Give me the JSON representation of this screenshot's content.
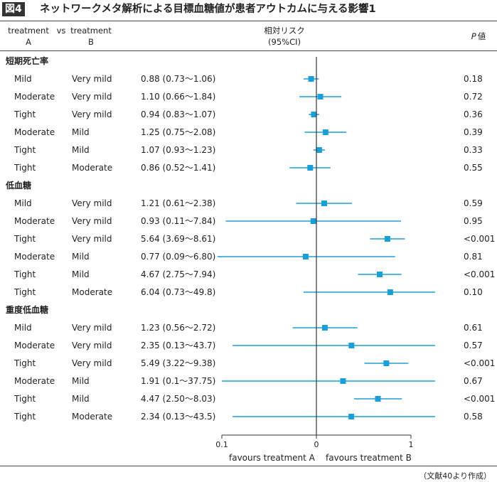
{
  "figure": {
    "label": "図4",
    "title": "ネットワークメタ解析による目標血糖値が患者アウトカムに与える影響1",
    "source_note": "（文献40より作成）"
  },
  "header": {
    "treatment_a_line1": "treatment",
    "treatment_a_line2": "A",
    "vs": "vs",
    "treatment_b_line1": "treatment",
    "treatment_b_line2": "B",
    "rr_line1": "相対リスク",
    "rr_line2": "(95%CI)",
    "p_label": "P",
    "p_suffix": "値"
  },
  "axis": {
    "ticks": [
      "0.1",
      "0",
      "1"
    ],
    "favours_a": "favours treatment A",
    "favours_b": "favours treatment B"
  },
  "colors": {
    "ci_line": "#1a9fd8",
    "marker": "#1a9fd8",
    "axis": "#333333",
    "rule": "#444444"
  },
  "chart_data": {
    "type": "forest",
    "x_scale": "log",
    "xlim": [
      0.1,
      10
    ],
    "sections": [
      {
        "name": "短期死亡率",
        "rows": [
          {
            "a": "Mild",
            "b": "Very mild",
            "rr": 0.88,
            "lo": 0.73,
            "hi": 1.06,
            "rr_text": "0.88 (0.73～1.06)",
            "p": "0.18"
          },
          {
            "a": "Moderate",
            "b": "Very mild",
            "rr": 1.1,
            "lo": 0.66,
            "hi": 1.84,
            "rr_text": "1.10 (0.66～1.84)",
            "p": "0.72"
          },
          {
            "a": "Tight",
            "b": "Very mild",
            "rr": 0.94,
            "lo": 0.83,
            "hi": 1.07,
            "rr_text": "0.94 (0.83～1.07)",
            "p": "0.36"
          },
          {
            "a": "Moderate",
            "b": "Mild",
            "rr": 1.25,
            "lo": 0.75,
            "hi": 2.08,
            "rr_text": "1.25 (0.75～2.08)",
            "p": "0.39"
          },
          {
            "a": "Tight",
            "b": "Mild",
            "rr": 1.07,
            "lo": 0.93,
            "hi": 1.23,
            "rr_text": "1.07 (0.93～1.23)",
            "p": "0.33"
          },
          {
            "a": "Tight",
            "b": "Moderate",
            "rr": 0.86,
            "lo": 0.52,
            "hi": 1.41,
            "rr_text": "0.86 (0.52～1.41)",
            "p": "0.55"
          }
        ]
      },
      {
        "name": "低血糖",
        "rows": [
          {
            "a": "Mild",
            "b": "Very mild",
            "rr": 1.21,
            "lo": 0.61,
            "hi": 2.38,
            "rr_text": "1.21 (0.61～2.38)",
            "p": "0.59"
          },
          {
            "a": "Moderate",
            "b": "Very mild",
            "rr": 0.93,
            "lo": 0.11,
            "hi": 7.84,
            "rr_text": "0.93 (0.11～7.84)",
            "p": "0.95"
          },
          {
            "a": "Tight",
            "b": "Very mild",
            "rr": 5.64,
            "lo": 3.69,
            "hi": 8.61,
            "rr_text": "5.64 (3.69～8.61)",
            "p": "<0.001"
          },
          {
            "a": "Moderate",
            "b": "Mild",
            "rr": 0.77,
            "lo": 0.09,
            "hi": 6.8,
            "rr_text": "0.77 (0.09～6.80)",
            "p": "0.81"
          },
          {
            "a": "Tight",
            "b": "Mild",
            "rr": 4.67,
            "lo": 2.75,
            "hi": 7.94,
            "rr_text": "4.67 (2.75～7.94)",
            "p": "<0.001"
          },
          {
            "a": "Tight",
            "b": "Moderate",
            "rr": 6.04,
            "lo": 0.73,
            "hi": 49.8,
            "rr_text": "6.04 (0.73～49.8)",
            "p": "0.10"
          }
        ]
      },
      {
        "name": "重度低血糖",
        "rows": [
          {
            "a": "Mild",
            "b": "Very mild",
            "rr": 1.23,
            "lo": 0.56,
            "hi": 2.72,
            "rr_text": "1.23 (0.56～2.72)",
            "p": "0.61"
          },
          {
            "a": "Moderate",
            "b": "Very mild",
            "rr": 2.35,
            "lo": 0.13,
            "hi": 43.7,
            "rr_text": "2.35 (0.13～43.7)",
            "p": "0.57"
          },
          {
            "a": "Tight",
            "b": "Very mild",
            "rr": 5.49,
            "lo": 3.22,
            "hi": 9.38,
            "rr_text": "5.49 (3.22～9.38)",
            "p": "<0.001"
          },
          {
            "a": "Moderate",
            "b": "Mild",
            "rr": 1.91,
            "lo": 0.1,
            "hi": 37.75,
            "rr_text": "1.91 (0.1～37.75)",
            "p": "0.67"
          },
          {
            "a": "Tight",
            "b": "Mild",
            "rr": 4.47,
            "lo": 2.5,
            "hi": 8.03,
            "rr_text": "4.47 (2.50～8.03)",
            "p": "<0.001"
          },
          {
            "a": "Tight",
            "b": "Moderate",
            "rr": 2.34,
            "lo": 0.13,
            "hi": 43.5,
            "rr_text": "2.34 (0.13～43.5)",
            "p": "0.58"
          }
        ]
      }
    ]
  }
}
